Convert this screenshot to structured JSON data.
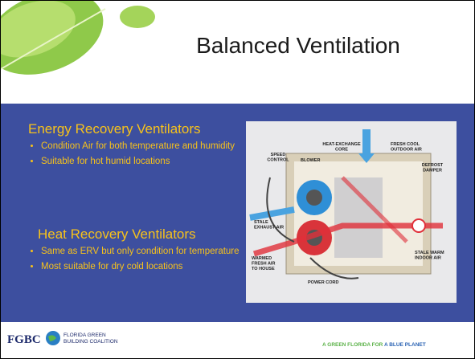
{
  "slide": {
    "title": "Balanced Ventilation",
    "sections": [
      {
        "heading": "Energy Recovery Ventilators",
        "bullets": [
          "Condition Air for both temperature and humidity",
          "Suitable for hot humid locations"
        ]
      },
      {
        "heading": "Heat Recovery Ventilators",
        "bullets": [
          "Same as ERV but only condition for temperature",
          "Most suitable for dry cold locations"
        ]
      }
    ],
    "diagram_labels": [
      {
        "lines": [
          "HEAT-EXCHANGE",
          "CORE"
        ]
      },
      {
        "lines": [
          "FRESH COOL",
          "OUTDOOR AIR"
        ]
      },
      {
        "lines": [
          "SPEED",
          "CONTROL"
        ]
      },
      {
        "lines": [
          "BLOWER"
        ]
      },
      {
        "lines": [
          "DEFROST",
          "DAMPER"
        ]
      },
      {
        "lines": [
          "STALE",
          "EXHAUST AIR"
        ]
      },
      {
        "lines": [
          "STALE WARM",
          "INDOOR AIR"
        ]
      },
      {
        "lines": [
          "WARMED",
          "FRESH AIR",
          "TO HOUSE"
        ]
      },
      {
        "lines": [
          "POWER CORD"
        ]
      }
    ]
  },
  "footer": {
    "logo": "FGBC",
    "org_line1": "FLORIDA GREEN",
    "org_line2": "BUILDING COALITION",
    "tagline_green": "A GREEN FLORIDA FOR",
    "tagline_blue": "A BLUE PLANET"
  }
}
